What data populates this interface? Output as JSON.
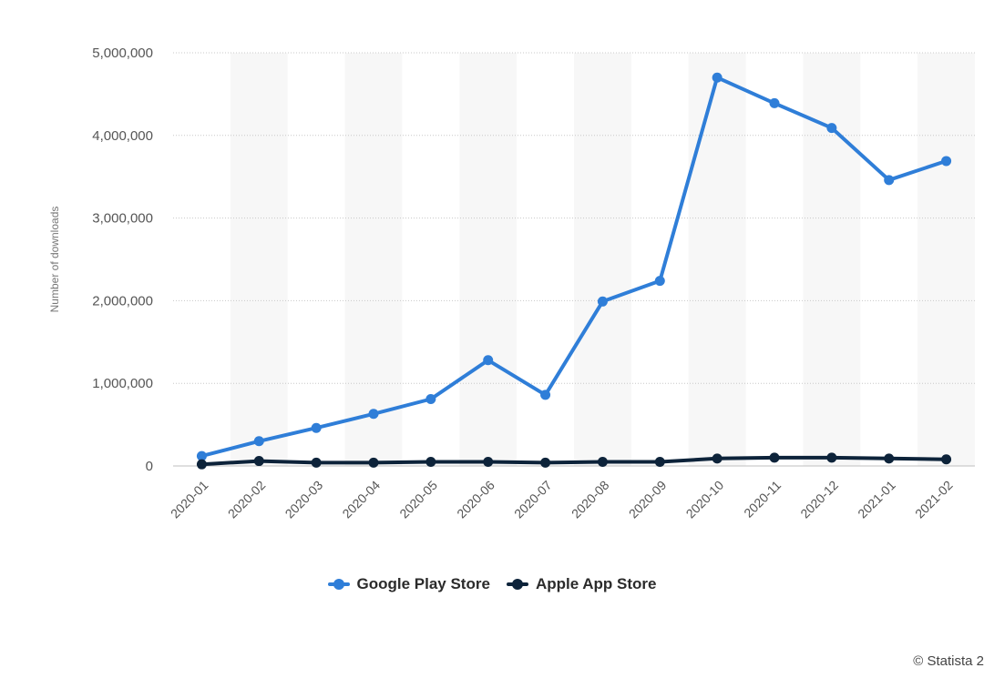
{
  "chart_data": {
    "type": "line",
    "title": "",
    "xlabel": "",
    "ylabel": "Number of downloads",
    "categories": [
      "2020-01",
      "2020-02",
      "2020-03",
      "2020-04",
      "2020-05",
      "2020-06",
      "2020-07",
      "2020-08",
      "2020-09",
      "2020-10",
      "2020-11",
      "2020-12",
      "2021-01",
      "2021-02"
    ],
    "ylim": [
      0,
      5000000
    ],
    "y_ticks": [
      0,
      1000000,
      2000000,
      3000000,
      4000000,
      5000000
    ],
    "y_tick_labels": [
      "0",
      "1,000,000",
      "2,000,000",
      "3,000,000",
      "4,000,000",
      "5,000,000"
    ],
    "grid": "horizontal dotted",
    "legend_position": "bottom-center",
    "series": [
      {
        "name": "Google Play Store",
        "color": "#2f7ed8",
        "values": [
          120000,
          300000,
          460000,
          630000,
          810000,
          1280000,
          860000,
          1990000,
          2240000,
          4700000,
          4390000,
          4090000,
          3460000,
          3690000
        ]
      },
      {
        "name": "Apple App Store",
        "color": "#0d233a",
        "values": [
          20000,
          60000,
          40000,
          40000,
          50000,
          50000,
          40000,
          50000,
          50000,
          90000,
          100000,
          100000,
          90000,
          80000
        ]
      }
    ]
  },
  "credit": "© Statista 2"
}
